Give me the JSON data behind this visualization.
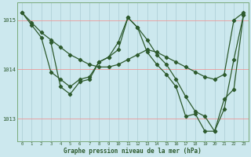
{
  "xlabel": "Graphe pression niveau de la mer (hPa)",
  "bg_color": "#cce8ee",
  "line_color": "#2d5a2d",
  "vgrid_color": "#aaccd4",
  "hgrid_color": "#ee9999",
  "xlim": [
    -0.5,
    23.5
  ],
  "ylim": [
    1012.55,
    1015.35
  ],
  "yticks": [
    1013,
    1014,
    1015
  ],
  "xticks": [
    0,
    1,
    2,
    3,
    4,
    5,
    6,
    7,
    8,
    9,
    10,
    11,
    12,
    13,
    14,
    15,
    16,
    17,
    18,
    19,
    20,
    21,
    22,
    23
  ],
  "series1_x": [
    0,
    1,
    2,
    3,
    4,
    5,
    6,
    7,
    8,
    9,
    10,
    11,
    12,
    13,
    14,
    15,
    16,
    17,
    18,
    19,
    20,
    21,
    22,
    23
  ],
  "series1_y": [
    1015.15,
    1014.95,
    1014.75,
    1014.6,
    1014.45,
    1014.3,
    1014.2,
    1014.1,
    1014.05,
    1014.05,
    1014.1,
    1014.2,
    1014.3,
    1014.4,
    1014.35,
    1014.25,
    1014.15,
    1014.05,
    1013.95,
    1013.85,
    1013.8,
    1013.9,
    1015.0,
    1015.15
  ],
  "series2_x": [
    0,
    1,
    2,
    3,
    4,
    5,
    6,
    7,
    8,
    9,
    10,
    11,
    12,
    13,
    14,
    15,
    16,
    17,
    18,
    19,
    20,
    21,
    22,
    23
  ],
  "series2_y": [
    1015.15,
    1014.9,
    1014.65,
    1013.95,
    1013.8,
    1013.65,
    1013.8,
    1013.85,
    1014.15,
    1014.25,
    1014.55,
    1015.05,
    1014.85,
    1014.6,
    1014.3,
    1014.1,
    1013.8,
    1013.45,
    1013.15,
    1013.05,
    1012.75,
    1013.2,
    1014.2,
    1015.1
  ],
  "series3_x": [
    3,
    4,
    5,
    6,
    7,
    8,
    9,
    10,
    11,
    12,
    13,
    14,
    15,
    16,
    17,
    18,
    19,
    20,
    21,
    22,
    23
  ],
  "series3_y": [
    1014.55,
    1013.65,
    1013.5,
    1013.75,
    1013.8,
    1014.15,
    1014.25,
    1014.4,
    1015.05,
    1014.85,
    1014.35,
    1014.1,
    1013.9,
    1013.65,
    1013.05,
    1013.1,
    1012.75,
    1012.75,
    1013.4,
    1013.6,
    1015.1
  ]
}
